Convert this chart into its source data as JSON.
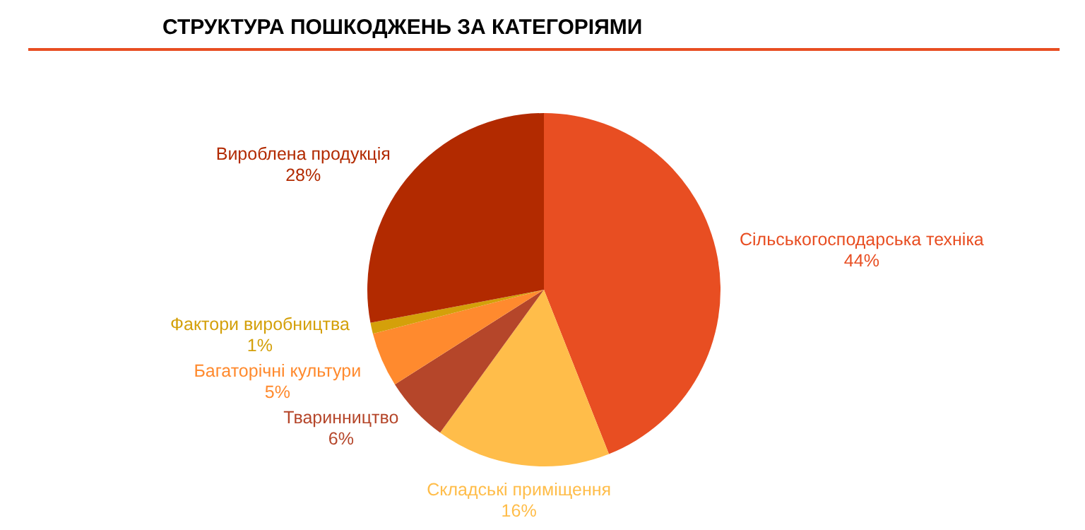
{
  "chart_data": {
    "type": "pie",
    "title": "СТРУКТУРА ПОШКОДЖЕНЬ ЗА КАТЕГОРІЯМИ",
    "categories": [
      "Сільськогосподарська техніка",
      "Складські приміщення",
      "Тваринництво",
      "Багаторічні культури",
      "Фактори виробництва",
      "Вироблена продукція"
    ],
    "values": [
      44,
      16,
      6,
      5,
      1,
      28
    ],
    "value_labels": [
      "44%",
      "16%",
      "6%",
      "5%",
      "1%",
      "28%"
    ],
    "colors": [
      "#e84e22",
      "#ffbd4a",
      "#b5462a",
      "#ff8a2e",
      "#d4a00a",
      "#b22a00"
    ],
    "legend": false
  }
}
